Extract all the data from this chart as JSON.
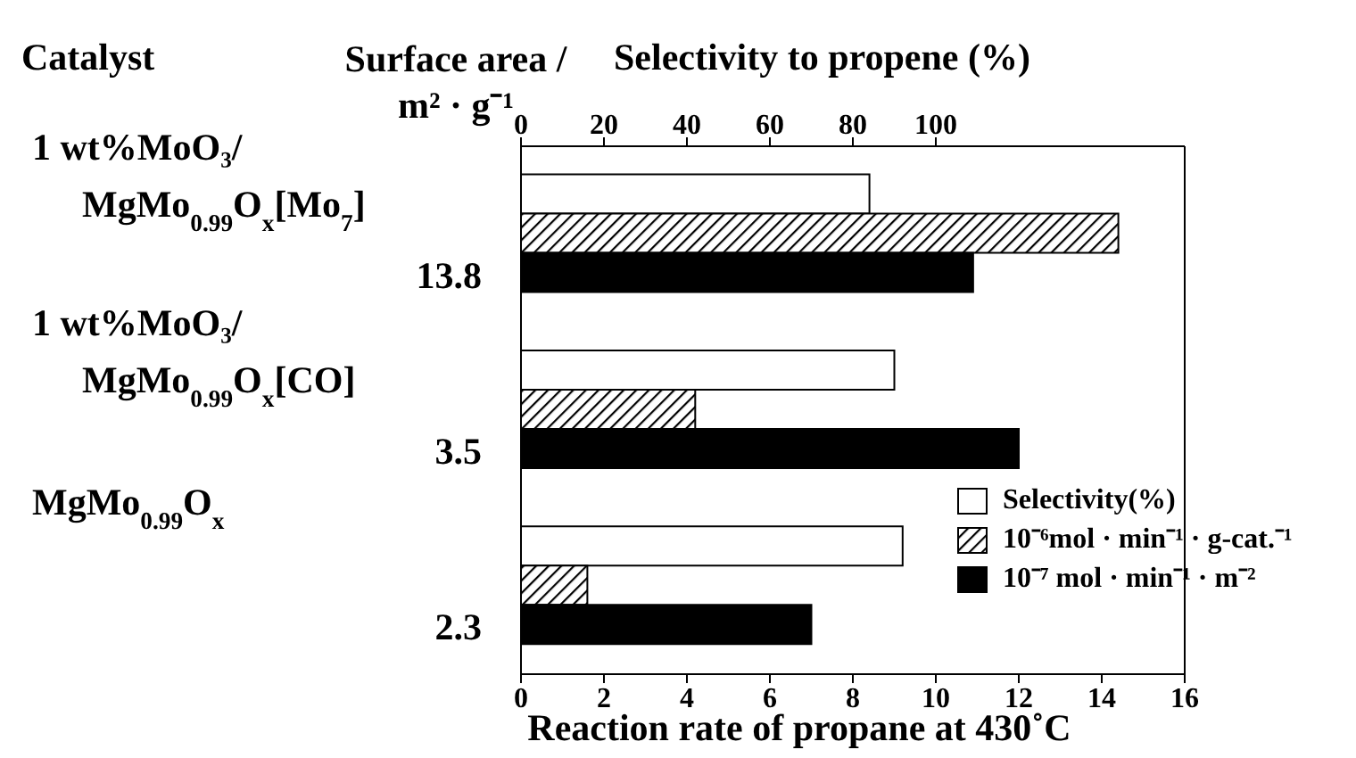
{
  "chart_data": {
    "type": "bar",
    "orientation": "horizontal",
    "ylabel": "Catalyst",
    "xlabel": "Reaction rate of propane at 430˚C",
    "x2label": "Selectivity to propene (%)",
    "categories": [
      "1 wt%MoO₃/MgMo$_{0.99}$O$_{x}$[Mo$_{7}$]",
      "1 wt%MoO₃/MgMo$_{0.99}$O$_{x}$[CO]",
      "MgMo$_{0.99}$O$_{x}$"
    ],
    "series": [
      {
        "name": "Selectivity(%)",
        "color": "#ffffff",
        "axis": "x2",
        "values": [
          84,
          90,
          92
        ]
      },
      {
        "name": "10⁻⁶mol · min⁻¹ · g-cat.⁻¹",
        "color": "#000000",
        "values": [
          14.4,
          4.2,
          1.6
        ]
      },
      {
        "name": "10⁻⁷ mol · min⁻¹ · m⁻²",
        "color": "#000000",
        "values": [
          10.9,
          12.0,
          7.0
        ]
      }
    ],
    "xlim": [
      0,
      16
    ],
    "xticks": [
      0,
      2,
      4,
      6,
      8,
      10,
      12,
      14,
      16
    ],
    "x2lim": [
      0,
      160
    ],
    "x2ticks": [
      0,
      20,
      40,
      60,
      80,
      100
    ],
    "annotations": [
      "Surface area / m² · g⁻¹",
      "13.8",
      "3.5",
      "2.3"
    ],
    "legend": "bottom right"
  }
}
